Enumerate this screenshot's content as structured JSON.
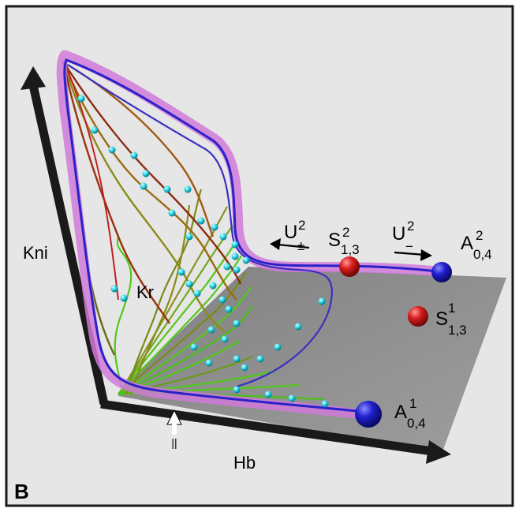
{
  "panel_label": "B",
  "axes": {
    "x": "Hb",
    "y": "Kni",
    "z": "Kr"
  },
  "points": {
    "A04_1": {
      "main": "A",
      "sup": "1",
      "sub": "0,4",
      "color": "#1f1fc8"
    },
    "A04_2": {
      "main": "A",
      "sup": "2",
      "sub": "0,4",
      "color": "#1f1fc8"
    },
    "S13_1": {
      "main": "S",
      "sup": "1",
      "sub": "1,3",
      "color": "#d41c1c"
    },
    "S13_2": {
      "main": "S",
      "sup": "2",
      "sub": "1,3",
      "color": "#d41c1c"
    }
  },
  "manifolds": {
    "U_plus": {
      "main": "U",
      "sup": "2",
      "sub": "±"
    },
    "U_minus": {
      "main": "U",
      "sup": "2",
      "sub": "−"
    }
  },
  "marker": "||",
  "colors": {
    "background": "#e6e6e6",
    "plane": "#8c8c8c",
    "axis": "#1a1a1a",
    "trajectory_blue": "#2a22c8",
    "trajectory_red": "#c02020",
    "glow": "#d07ad8",
    "fan_green": "#52c81c",
    "fan_olive": "#7a7a14",
    "dots": "#22d6e6"
  }
}
